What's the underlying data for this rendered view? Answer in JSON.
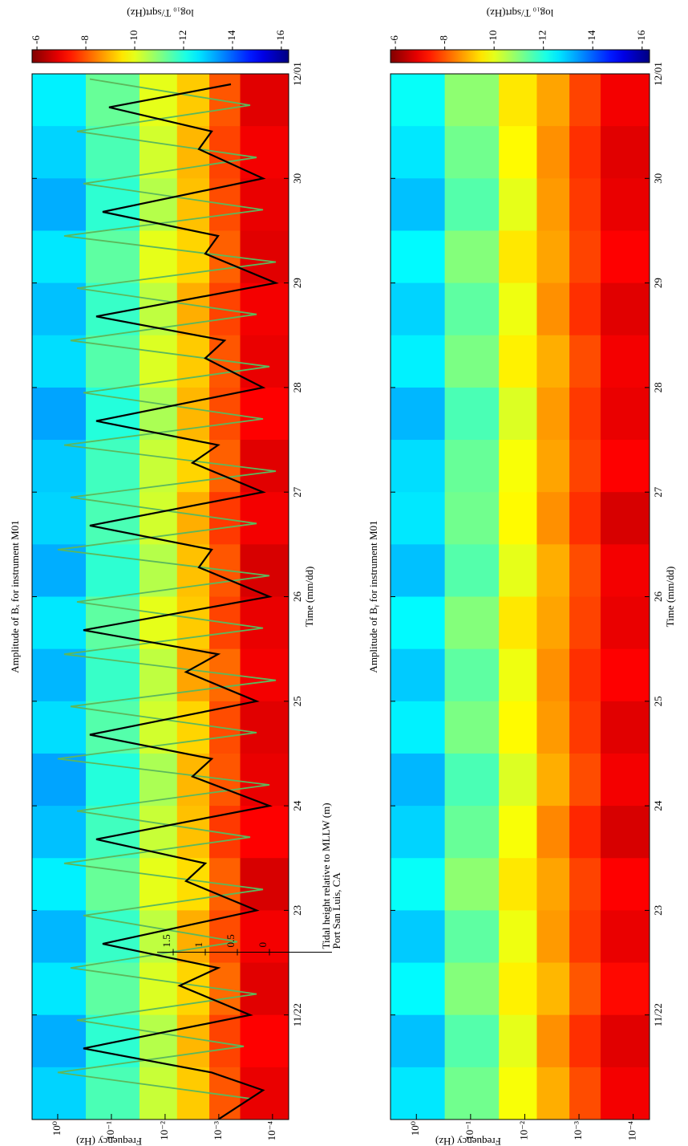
{
  "chart_data": [
    {
      "type": "heatmap",
      "title": "Amplitude of Bₓ for instrument M01",
      "xlabel": "Time (mm/dd)",
      "ylabel": "Frequency (Hz)",
      "colorbar_label": "log₁₀ T/sqrt(Hz)",
      "colormap": "jet",
      "ylog": true,
      "xlim": [
        21,
        31
      ],
      "xticks": [
        {
          "value": 22,
          "label": "11/22"
        },
        23,
        24,
        25,
        26,
        27,
        28,
        29,
        30,
        {
          "value": 31,
          "label": "12/01"
        }
      ],
      "ylim": [
        5e-05,
        3
      ],
      "yticks": [
        {
          "value": 1,
          "label": "10⁰"
        },
        {
          "value": 0.1,
          "label": "10⁻¹"
        },
        {
          "value": 0.01,
          "label": "10⁻²"
        },
        {
          "value": 0.001,
          "label": "10⁻³"
        },
        {
          "value": 0.0001,
          "label": "10⁻⁴"
        }
      ],
      "x_bins": [
        21,
        21.5,
        22,
        22.5,
        23,
        23.5,
        24,
        24.5,
        25,
        25.5,
        26,
        26.5,
        27,
        27.5,
        28,
        28.5,
        29,
        29.5,
        30,
        30.5,
        31
      ],
      "y_bins": [
        3,
        0.3,
        0.03,
        0.006,
        0.0015,
        0.0004,
        5e-05
      ],
      "z": [
        [
          -12.8,
          -13.2,
          -12.6,
          -13.1,
          -12.5,
          -13.0,
          -13.3,
          -12.7,
          -13.1,
          -12.6,
          -13.2,
          -12.8,
          -12.9,
          -13.3,
          -12.7,
          -13.0,
          -12.6,
          -13.2,
          -12.8,
          -12.5
        ],
        [
          -11.6,
          -11.9,
          -11.4,
          -11.8,
          -11.3,
          -11.7,
          -12.0,
          -11.5,
          -11.8,
          -11.4,
          -11.9,
          -11.6,
          -11.7,
          -12.0,
          -11.5,
          -11.8,
          -11.4,
          -11.9,
          -11.6,
          -11.3
        ],
        [
          -10.3,
          -10.5,
          -10.1,
          -10.4,
          -10.0,
          -10.3,
          -10.6,
          -10.2,
          -10.4,
          -10.0,
          -10.5,
          -10.2,
          -10.3,
          -10.6,
          -10.1,
          -10.4,
          -10.0,
          -10.5,
          -10.2,
          -10.0
        ],
        [
          -9.2,
          -9.0,
          -9.3,
          -8.9,
          -9.4,
          -9.1,
          -9.0,
          -9.3,
          -8.8,
          -9.2,
          -9.1,
          -8.9,
          -9.3,
          -9.0,
          -9.2,
          -8.9,
          -9.3,
          -9.1,
          -9.0,
          -9.2
        ],
        [
          -8.0,
          -7.8,
          -8.2,
          -7.9,
          -8.1,
          -7.7,
          -8.0,
          -7.9,
          -8.2,
          -7.8,
          -8.0,
          -7.7,
          -8.1,
          -7.9,
          -8.0,
          -7.8,
          -8.1,
          -7.9,
          -7.8,
          -8.0
        ],
        [
          -6.9,
          -7.1,
          -6.8,
          -7.0,
          -6.7,
          -7.1,
          -6.9,
          -6.8,
          -7.0,
          -6.9,
          -6.7,
          -7.0,
          -6.8,
          -7.1,
          -6.9,
          -7.0,
          -6.8,
          -6.9,
          -7.0,
          -6.8
        ]
      ],
      "clim": [
        -16.3,
        -5.8
      ],
      "cticks": [
        -6,
        -8,
        -10,
        -12,
        -14,
        -16
      ],
      "y2label": "Tidal height relative to MLLW (m)",
      "y2note": "Port San Luis, CA",
      "y2lim": [
        -0.3,
        3.7
      ],
      "y2ticks": [
        0,
        0.5,
        1,
        1.5
      ],
      "series": [
        {
          "color": "#5cb85c",
          "axis": "y2",
          "x": [
            21.2,
            21.45,
            21.7,
            21.95,
            22.2,
            22.45,
            22.7,
            22.95,
            23.2,
            23.45,
            23.7,
            23.95,
            24.2,
            24.45,
            24.7,
            24.95,
            25.2,
            25.45,
            25.7,
            25.95,
            26.2,
            26.45,
            26.7,
            26.95,
            27.2,
            27.45,
            27.7,
            27.95,
            28.2,
            28.45,
            28.7,
            28.95,
            29.2,
            29.45,
            29.7,
            29.95,
            30.2,
            30.45,
            30.7,
            30.95
          ],
          "values": [
            0.3,
            3.3,
            0.4,
            3.0,
            0.2,
            3.1,
            0.5,
            2.9,
            0.1,
            3.2,
            0.3,
            3.0,
            0.0,
            3.3,
            0.2,
            3.1,
            -0.1,
            3.2,
            0.1,
            3.0,
            0.0,
            3.3,
            0.2,
            3.1,
            -0.1,
            3.2,
            0.1,
            2.9,
            0.0,
            3.1,
            0.2,
            3.0,
            -0.1,
            3.2,
            0.1,
            2.9,
            0.2,
            3.0,
            0.3,
            2.8
          ]
        },
        {
          "color": "#000000",
          "axis": "y2",
          "x": [
            21,
            21.28,
            21.45,
            21.68,
            22,
            22.28,
            22.45,
            22.68,
            23,
            23.28,
            23.45,
            23.68,
            24,
            24.28,
            24.45,
            24.68,
            25,
            25.28,
            25.45,
            25.68,
            26,
            26.28,
            26.45,
            26.68,
            27,
            27.28,
            27.45,
            27.68,
            28,
            28.28,
            28.45,
            28.68,
            29,
            29.28,
            29.45,
            29.68,
            30,
            30.28,
            30.45,
            30.68,
            30.9
          ],
          "values": [
            0.8,
            0.1,
            0.9,
            2.9,
            0.3,
            1.4,
            0.8,
            2.6,
            0.2,
            1.3,
            1.0,
            2.7,
            0.0,
            1.2,
            0.9,
            2.8,
            0.2,
            1.3,
            0.8,
            2.9,
            0.0,
            1.1,
            0.9,
            2.8,
            0.1,
            1.2,
            0.8,
            2.7,
            0.1,
            1.0,
            0.7,
            2.7,
            -0.1,
            1.0,
            0.8,
            2.6,
            0.1,
            1.1,
            0.9,
            2.5,
            0.6
          ]
        }
      ]
    },
    {
      "type": "heatmap",
      "title": "Amplitude of Bᵧ for instrument M01",
      "xlabel": "Time (mm/dd)",
      "ylabel": "Frequency (Hz)",
      "colorbar_label": "log₁₀ T/sqrt(Hz)",
      "colormap": "jet",
      "ylog": true,
      "xlim": [
        21,
        31
      ],
      "xticks": [
        {
          "value": 22,
          "label": "11/22"
        },
        23,
        24,
        25,
        26,
        27,
        28,
        29,
        30,
        {
          "value": 31,
          "label": "12/01"
        }
      ],
      "ylim": [
        5e-05,
        3
      ],
      "yticks": [
        {
          "value": 1,
          "label": "10⁰"
        },
        {
          "value": 0.1,
          "label": "10⁻¹"
        },
        {
          "value": 0.01,
          "label": "10⁻²"
        },
        {
          "value": 0.001,
          "label": "10⁻³"
        },
        {
          "value": 0.0001,
          "label": "10⁻⁴"
        }
      ],
      "x_bins": [
        21,
        21.5,
        22,
        22.5,
        23,
        23.5,
        24,
        24.5,
        25,
        25.5,
        26,
        26.5,
        27,
        27.5,
        28,
        28.5,
        29,
        29.5,
        30,
        30.5,
        31
      ],
      "y_bins": [
        3,
        0.3,
        0.03,
        0.006,
        0.0015,
        0.0004,
        5e-05
      ],
      "z": [
        [
          -12.6,
          -13.0,
          -12.4,
          -12.9,
          -12.3,
          -12.8,
          -13.1,
          -12.5,
          -12.9,
          -12.4,
          -13.0,
          -12.6,
          -12.7,
          -13.1,
          -12.5,
          -12.8,
          -12.4,
          -13.0,
          -12.6,
          -12.3
        ],
        [
          -11.2,
          -11.5,
          -11.0,
          -11.4,
          -10.9,
          -11.3,
          -11.6,
          -11.1,
          -11.4,
          -11.0,
          -11.5,
          -11.2,
          -11.3,
          -11.6,
          -11.1,
          -11.4,
          -11.0,
          -11.5,
          -11.2,
          -10.9
        ],
        [
          -9.8,
          -10.0,
          -9.6,
          -9.9,
          -9.5,
          -9.8,
          -10.1,
          -9.7,
          -9.9,
          -9.5,
          -10.0,
          -9.7,
          -9.8,
          -10.1,
          -9.6,
          -9.9,
          -9.5,
          -10.0,
          -9.7,
          -9.5
        ],
        [
          -8.9,
          -8.6,
          -9.0,
          -8.7,
          -8.8,
          -8.5,
          -8.9,
          -8.7,
          -8.6,
          -8.8,
          -8.9,
          -8.6,
          -8.8,
          -8.7,
          -8.9,
          -8.6,
          -8.8,
          -8.7,
          -8.6,
          -8.8
        ],
        [
          -7.9,
          -7.6,
          -8.0,
          -7.7,
          -7.8,
          -7.5,
          -7.9,
          -7.7,
          -7.6,
          -7.8,
          -7.9,
          -7.6,
          -7.8,
          -7.7,
          -7.9,
          -7.6,
          -7.8,
          -7.7,
          -7.6,
          -7.8
        ],
        [
          -7.0,
          -6.8,
          -7.2,
          -6.9,
          -7.1,
          -6.7,
          -7.0,
          -6.8,
          -7.1,
          -6.9,
          -7.0,
          -6.7,
          -7.1,
          -6.9,
          -7.0,
          -6.8,
          -7.1,
          -6.9,
          -6.8,
          -7.0
        ]
      ],
      "clim": [
        -16.3,
        -5.8
      ],
      "cticks": [
        -6,
        -8,
        -10,
        -12,
        -14,
        -16
      ]
    }
  ]
}
